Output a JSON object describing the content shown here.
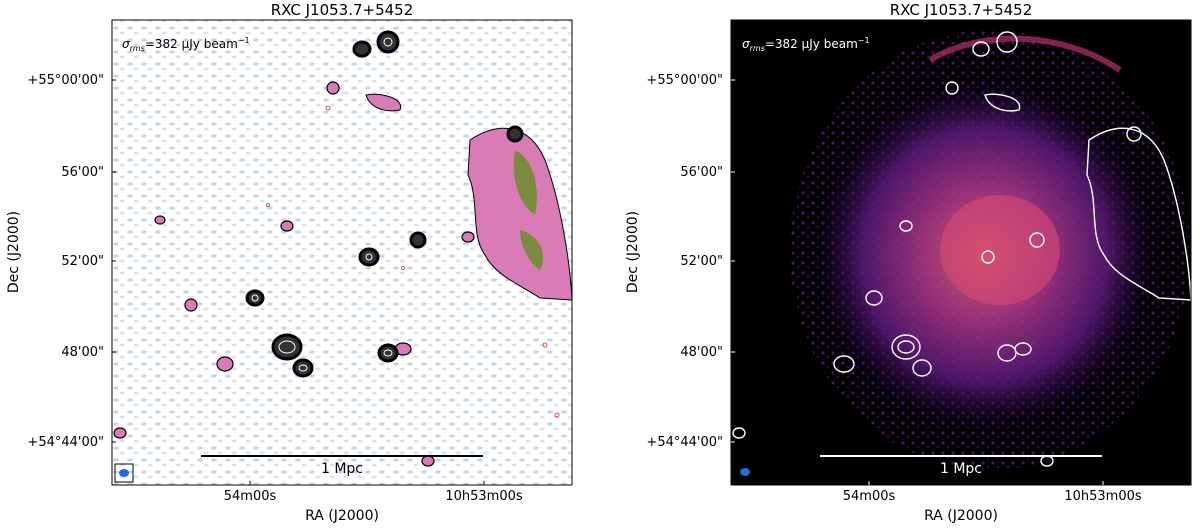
{
  "panels": [
    {
      "title": "RXC J1053.7+5452",
      "rms_label_prefix": "σ",
      "rms_label_sub": "rms",
      "rms_label_text": "=382 μJy beam",
      "rms_label_sup": "−1",
      "xlabel": "RA (J2000)",
      "ylabel": "Dec (J2000)",
      "xticks": [
        "54m00s",
        "10h53m00s"
      ],
      "yticks": [
        "+55°00'00\"",
        "56'00\"",
        "52'00\"",
        "48'00\"",
        "+54°44'00\""
      ],
      "scalebar_label": "1 Mpc",
      "colors": {
        "background": "#ffffff",
        "emission": "#d97bb6",
        "emission_core": "#7b8a3c",
        "noise": "#b9c8ea",
        "contour": "#000000",
        "neg_contour": "#e02020"
      }
    },
    {
      "title": "RXC J1053.7+5452",
      "rms_label_prefix": "σ",
      "rms_label_sub": "rms",
      "rms_label_text": "=382 μJy beam",
      "rms_label_sup": "−1",
      "xlabel": "RA (J2000)",
      "ylabel": "Dec (J2000)",
      "xticks": [
        "54m00s",
        "10h53m00s"
      ],
      "yticks": [
        "+55°00'00\"",
        "56'00\"",
        "52'00\"",
        "48'00\"",
        "+54°44'00\""
      ],
      "scalebar_label": "1 Mpc",
      "colors": {
        "background": "#000000",
        "xray_outer": "#2a0a4e",
        "xray_mid": "#7a1f8a",
        "xray_core": "#e8506a",
        "contour": "#ffffff",
        "neg_contour": "#e02020"
      }
    }
  ]
}
